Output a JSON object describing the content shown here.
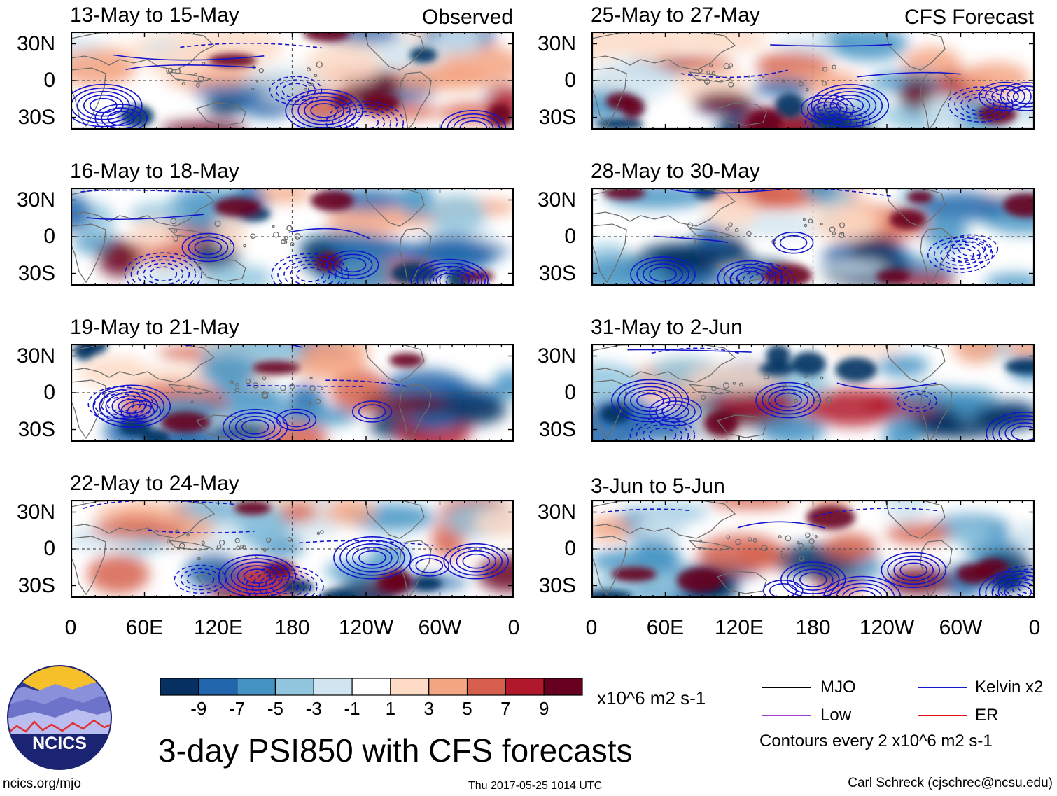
{
  "chart_data": {
    "type": "heatmap",
    "title": "3-day PSI850 with CFS forecasts",
    "variable": "PSI850 anomaly",
    "units": "x10^6 m2 s-1",
    "colorbar": {
      "ticks": [
        "-9",
        "-7",
        "-5",
        "-3",
        "-1",
        "1",
        "3",
        "5",
        "7",
        "9"
      ],
      "colors": [
        "#053061",
        "#2166ac",
        "#4393c3",
        "#92c5de",
        "#d1e5f0",
        "#ffffff",
        "#fddbc7",
        "#f4a582",
        "#d6604d",
        "#b2182b",
        "#67001f"
      ]
    },
    "lat_ticks": [
      "30N",
      "0",
      "30S"
    ],
    "lon_ticks": [
      "0",
      "60E",
      "120E",
      "180",
      "120W",
      "60W",
      "0"
    ],
    "columns": [
      {
        "label": "Observed",
        "panels": [
          "13-May to 15-May",
          "16-May to 18-May",
          "19-May to 21-May",
          "22-May to 24-May"
        ]
      },
      {
        "label": "CFS Forecast",
        "panels": [
          "25-May to 27-May",
          "28-May to 30-May",
          "31-May to 2-Jun",
          "3-Jun to 5-Jun"
        ]
      }
    ],
    "contour_legend": [
      {
        "label": "MJO",
        "color": "#000000"
      },
      {
        "label": "Kelvin x2",
        "color": "#1515cc"
      },
      {
        "label": "Low",
        "color": "#9a3fcf"
      },
      {
        "label": "ER",
        "color": "#e0101a"
      }
    ],
    "contour_note": "Contours every 2 x10^6 m2 s-1"
  },
  "footer": {
    "logo_text": "NCICS",
    "url": "ncics.org/mjo",
    "timestamp": "Thu 2017-05-25 1014 UTC",
    "credit": "Carl Schreck (cjschrec@ncsu.edu)"
  }
}
